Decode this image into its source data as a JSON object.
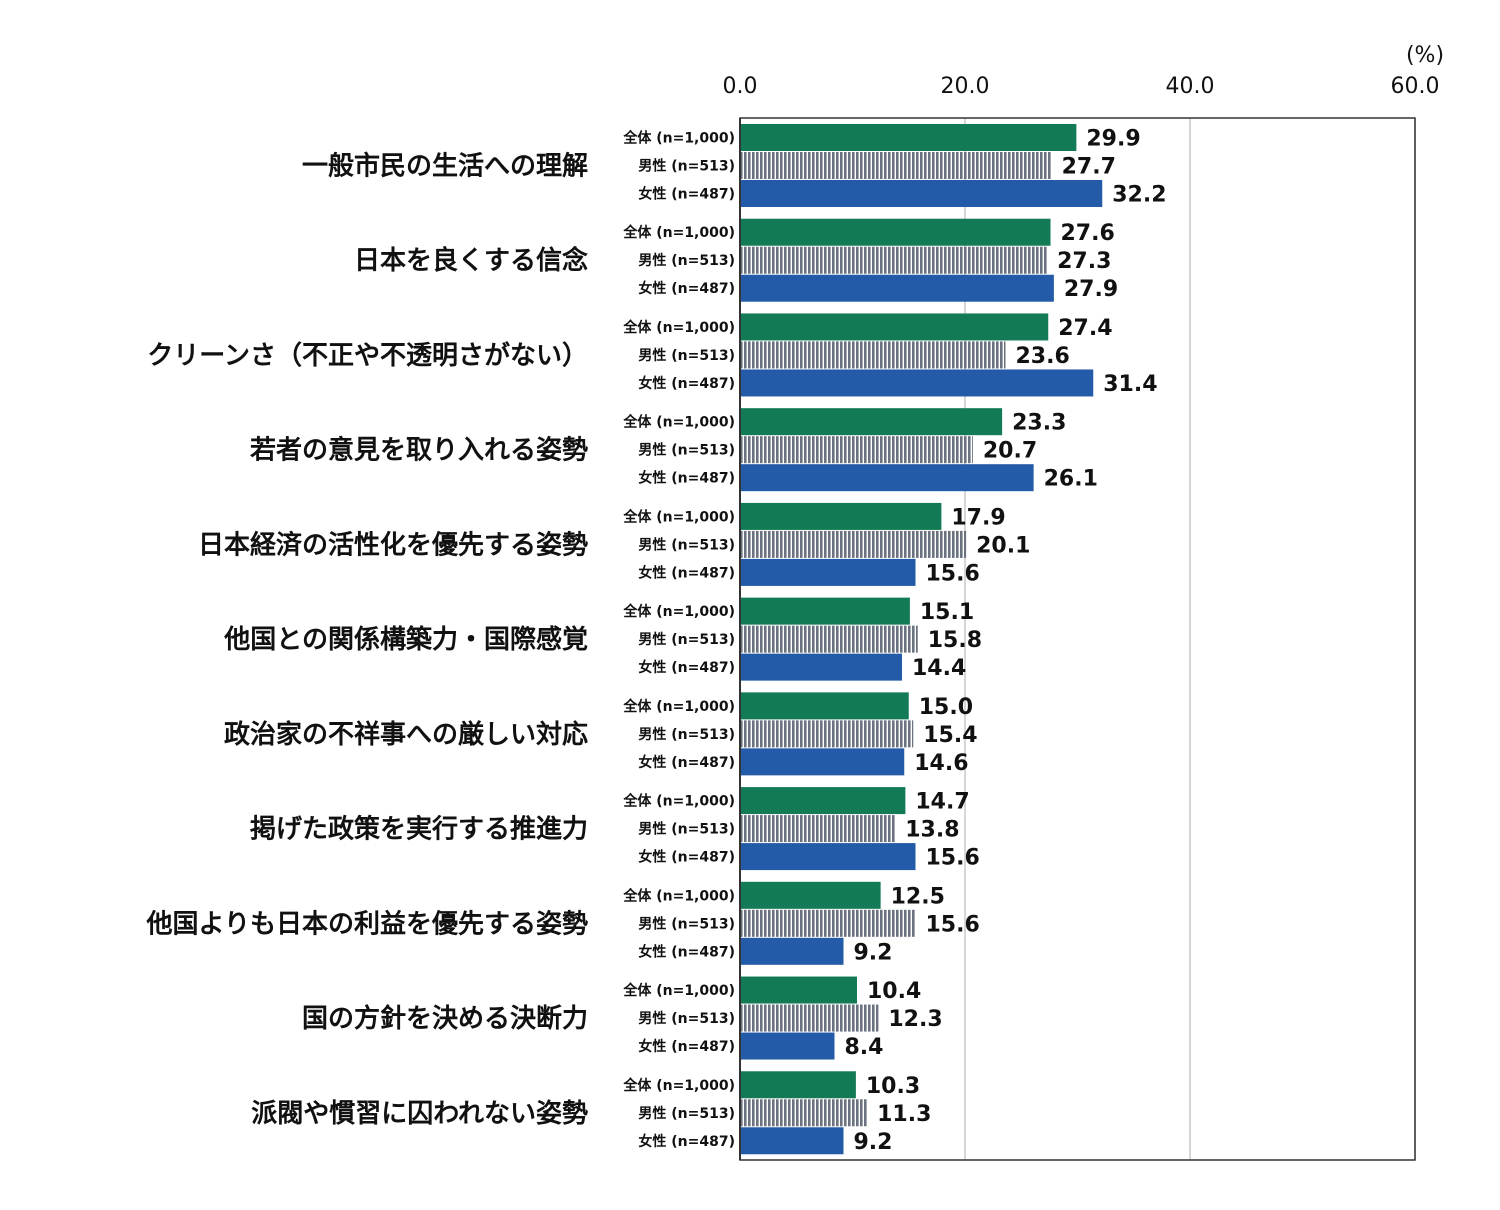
{
  "chart_data": {
    "type": "bar",
    "orientation": "horizontal",
    "unit_label": "(%)",
    "xlim": [
      0,
      60
    ],
    "x_ticks": [
      "0.0",
      "20.0",
      "40.0",
      "60.0"
    ],
    "grid": true,
    "categories": [
      "一般市民の生活への理解",
      "日本を良くする信念",
      "クリーンさ（不正や不透明さがない）",
      "若者の意見を取り入れる姿勢",
      "日本経済の活性化を優先する姿勢",
      "他国との関係構築力・国際感覚",
      "政治家の不祥事への厳しい対応",
      "掲げた政策を実行する推進力",
      "他国よりも日本の利益を優先する姿勢",
      "国の方針を決める決断力",
      "派閥や慣習に囚われない姿勢"
    ],
    "series": [
      {
        "name": "全体 (n=1,000)",
        "color": "#127a55",
        "pattern": "solid",
        "values": [
          29.9,
          27.6,
          27.4,
          23.3,
          17.9,
          15.1,
          15.0,
          14.7,
          12.5,
          10.4,
          10.3
        ]
      },
      {
        "name": "男性 (n=513)",
        "color": "#6b7280",
        "pattern": "vertical-stripes",
        "values": [
          27.7,
          27.3,
          23.6,
          20.7,
          20.1,
          15.8,
          15.4,
          13.8,
          15.6,
          12.3,
          11.3
        ]
      },
      {
        "name": "女性 (n=487)",
        "color": "#245ba8",
        "pattern": "solid",
        "values": [
          32.2,
          27.9,
          31.4,
          26.1,
          15.6,
          14.4,
          14.6,
          15.6,
          9.2,
          8.4,
          9.2
        ]
      }
    ]
  }
}
